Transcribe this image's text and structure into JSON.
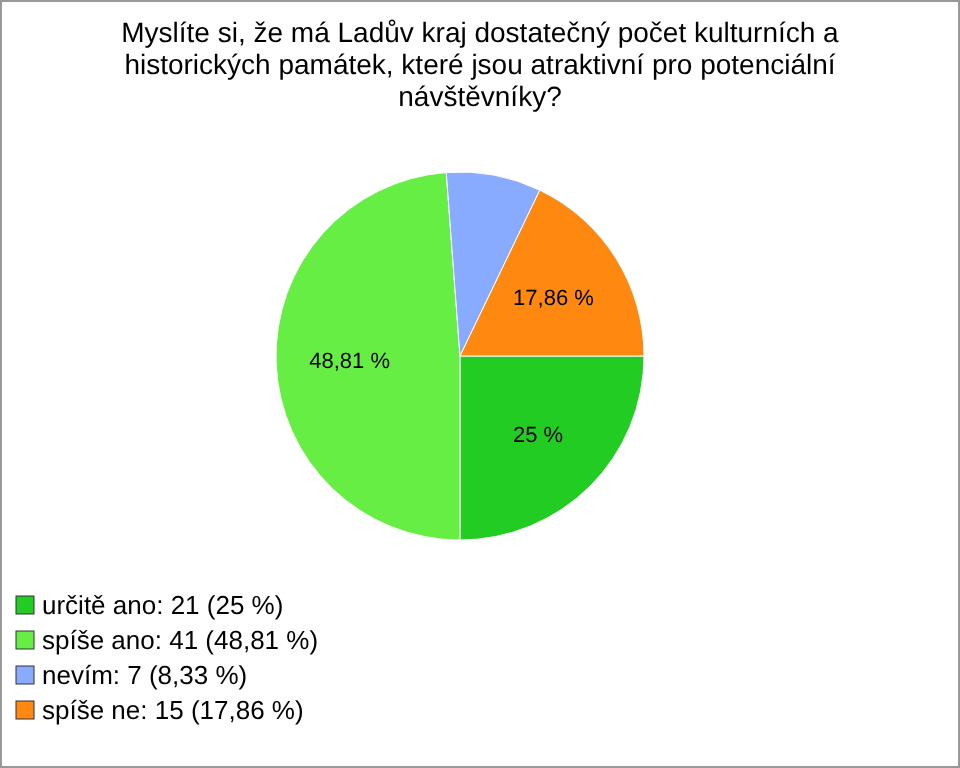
{
  "chart_data": {
    "type": "pie",
    "title": "Myslíte si, že má Ladův kraj dostatečný počet kulturních a historických památek, které jsou atraktivní pro potenciální návštěvníky?",
    "categories": [
      "určitě ano: 21 (25 %)",
      "spíše ano: 41 (48,81 %)",
      "nevím: 7 (8,33 %)",
      "spíše ne: 15 (17,86 %)"
    ],
    "values": [
      25,
      48.81,
      8.33,
      17.86
    ],
    "colors": [
      "#22cc22",
      "#66ee44",
      "#88aaff",
      "#ff8811"
    ],
    "value_labels": [
      "25 %",
      "48,81 %",
      null,
      "17,86 %"
    ],
    "legend": "bottom left"
  }
}
